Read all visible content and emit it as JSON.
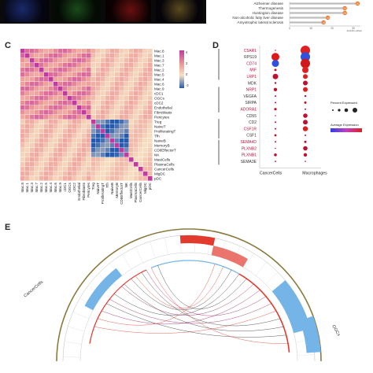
{
  "panels": {
    "c": "C",
    "d": "D",
    "e": "E"
  },
  "top_right_list": {
    "items": [
      {
        "label": "Alzheimer disease",
        "value": "32"
      },
      {
        "label": "Thermogenesis",
        "value": "26"
      },
      {
        "label": "Huntington disease",
        "value": "26"
      },
      {
        "label": "Non-alcoholic fatty liver disease",
        "value": "18"
      },
      {
        "label": "Amyotrophic lateral sclerosis",
        "value": "16"
      }
    ],
    "x_ticks": [
      "0",
      "10",
      "20",
      "30"
    ],
    "x_label": "-log10(p-value)"
  },
  "heatmap": {
    "row_labels": [
      "Mac.8",
      "Mac.1",
      "Mac.3",
      "Mac.7",
      "Mac.2",
      "Mac.5",
      "Mac.4",
      "Mac.6",
      "Mac.9",
      "cDC1",
      "OGCs",
      "cDC2",
      "Endothelial",
      "Fibroblasts",
      "Pericytes",
      "Treg",
      "NaiveT",
      "ProliferatingT",
      "Tfh",
      "NaiveB",
      "MemoryB",
      "CD8EffectorT",
      "NK",
      "MastCells",
      "PlasmaCells",
      "CancerCells",
      "MigDC",
      "pDC"
    ],
    "col_labels": [
      "Mac.8",
      "Mac.1",
      "Mac.3",
      "Mac.7",
      "Mac.2",
      "Mac.5",
      "Mac.4",
      "Mac.6",
      "Mac.9",
      "cDC1",
      "OGCs",
      "cDC2",
      "Endothelial",
      "Fibroblasts",
      "Pericytes",
      "Treg",
      "NaiveT",
      "ProliferatingT",
      "Tfh",
      "NaiveB",
      "MemoryB",
      "CD8EffectorT",
      "NK",
      "MastCells",
      "PlasmaCells",
      "CancerCells",
      "MigDC",
      "pDC"
    ],
    "legend_ticks": [
      "4",
      "2",
      "0",
      "-2"
    ]
  },
  "dotplot": {
    "genes": [
      {
        "name": "C5AR1",
        "color": "#c0143c"
      },
      {
        "name": "RPS19",
        "color": "#333333"
      },
      {
        "name": "CD74",
        "color": "#c0143c"
      },
      {
        "name": "MIF",
        "color": "#c0143c"
      },
      {
        "name": "LRP1",
        "color": "#c0143c"
      },
      {
        "name": "MDK",
        "color": "#333333"
      },
      {
        "name": "NRP1",
        "color": "#c0143c"
      },
      {
        "name": "VEGFA",
        "color": "#333333"
      },
      {
        "name": "SIRPA",
        "color": "#333333"
      },
      {
        "name": "ADORA1",
        "color": "#c0143c"
      },
      {
        "name": "CD55",
        "color": "#333333"
      },
      {
        "name": "CD2",
        "color": "#333333"
      },
      {
        "name": "CSF1R",
        "color": "#c0143c"
      },
      {
        "name": "CSF1",
        "color": "#333333"
      },
      {
        "name": "SEMA4D",
        "color": "#c0143c"
      },
      {
        "name": "PLXNB2",
        "color": "#c0143c"
      },
      {
        "name": "PLXNB1",
        "color": "#c0143c"
      },
      {
        "name": "SEMA3E",
        "color": "#333333"
      }
    ],
    "groups": [
      "CancerCells",
      "Macrophages"
    ],
    "legend_size_title": "Percent Expressed",
    "legend_color_title": "Average Expression"
  },
  "chord": {
    "left_label": "CancerCells",
    "right_label": "OGCs",
    "colors": {
      "red": "#e23b2e",
      "blue": "#74b4e6",
      "outer": "#8a7a40"
    }
  }
}
